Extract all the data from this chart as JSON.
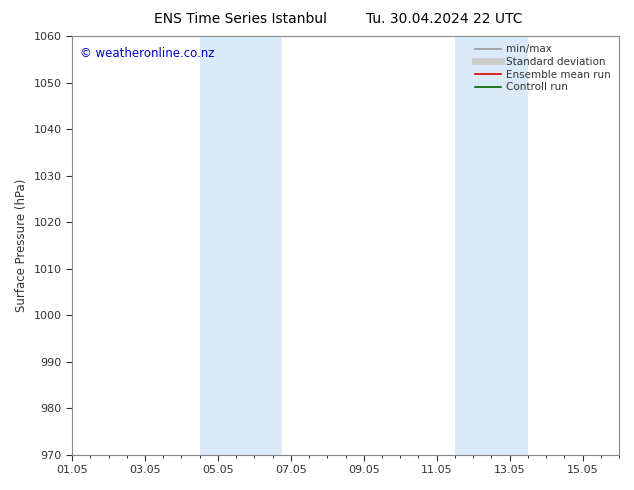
{
  "title_left": "ENS Time Series Istanbul",
  "title_right": "Tu. 30.04.2024 22 UTC",
  "ylabel": "Surface Pressure (hPa)",
  "ylim": [
    970,
    1060
  ],
  "yticks": [
    970,
    980,
    990,
    1000,
    1010,
    1020,
    1030,
    1040,
    1050,
    1060
  ],
  "xlim": [
    0,
    15
  ],
  "xtick_labels": [
    "01.05",
    "03.05",
    "05.05",
    "07.05",
    "09.05",
    "11.05",
    "13.05",
    "15.05"
  ],
  "xtick_positions_days": [
    0,
    2,
    4,
    6,
    8,
    10,
    12,
    14
  ],
  "shaded_bands": [
    {
      "start_day": 3.5,
      "end_day": 5.75
    },
    {
      "start_day": 10.5,
      "end_day": 12.5
    }
  ],
  "shade_color": "#daeaf8",
  "watermark": "© weatheronline.co.nz",
  "watermark_color": "#0000cc",
  "legend_items": [
    {
      "label": "min/max",
      "color": "#999999",
      "lw": 1.2
    },
    {
      "label": "Standard deviation",
      "color": "#cccccc",
      "lw": 5
    },
    {
      "label": "Ensemble mean run",
      "color": "#dd0000",
      "lw": 1.2
    },
    {
      "label": "Controll run",
      "color": "#006600",
      "lw": 1.2
    }
  ],
  "background_color": "#ffffff",
  "spine_color": "#888888",
  "tick_color": "#333333",
  "title_fontsize": 10,
  "label_fontsize": 8.5,
  "tick_fontsize": 8,
  "watermark_fontsize": 8.5,
  "legend_fontsize": 7.5
}
